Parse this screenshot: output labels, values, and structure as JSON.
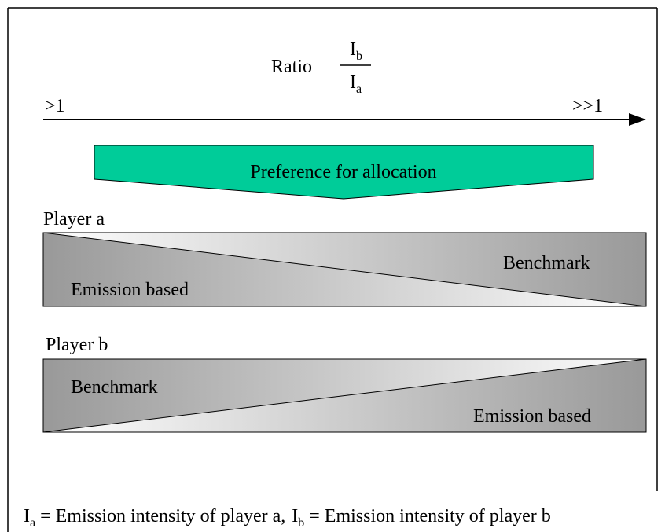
{
  "ratio": {
    "label": "Ratio",
    "numerator": {
      "symbol": "I",
      "subscript": "b"
    },
    "denominator": {
      "symbol": "I",
      "subscript": "a"
    }
  },
  "axis": {
    "left": ">1",
    "right": ">>1"
  },
  "preference": "Preference for allocation",
  "players": [
    {
      "name": "Player a",
      "left_label": "Emission based",
      "right_label": "Benchmark"
    },
    {
      "name": "Player b",
      "left_label": "Benchmark",
      "right_label": "Emission based"
    }
  ],
  "footnote": [
    {
      "symbol": "I",
      "subscript": "a",
      "text": "= Emission intensity of player a,"
    },
    {
      "symbol": "I",
      "subscript": "b",
      "text": "= Emission intensity of player b"
    }
  ]
}
